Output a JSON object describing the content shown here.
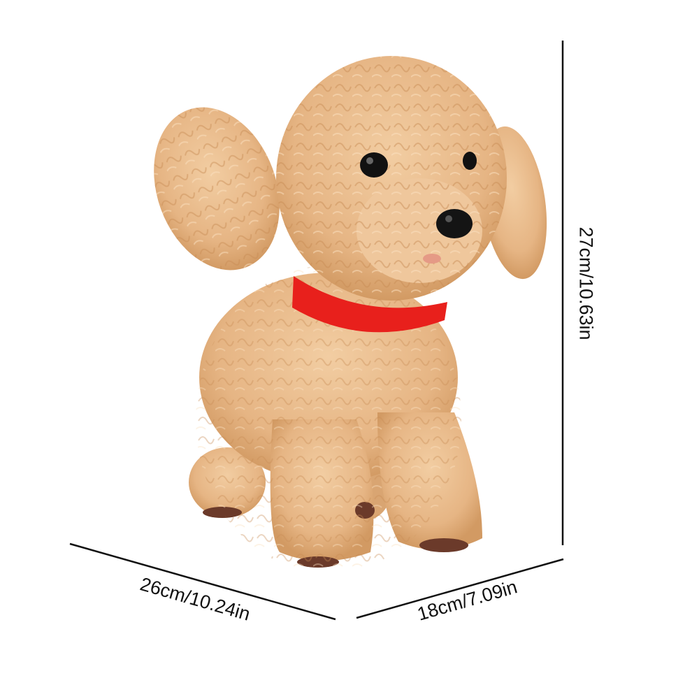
{
  "product": {
    "subject": "plush toy dog with red collar",
    "fur_color": "#e6b584",
    "collar_color": "#e8201c"
  },
  "dimensions": {
    "height": "27cm/10.63in",
    "length": "26cm/10.24in",
    "width": "18cm/7.09in"
  }
}
